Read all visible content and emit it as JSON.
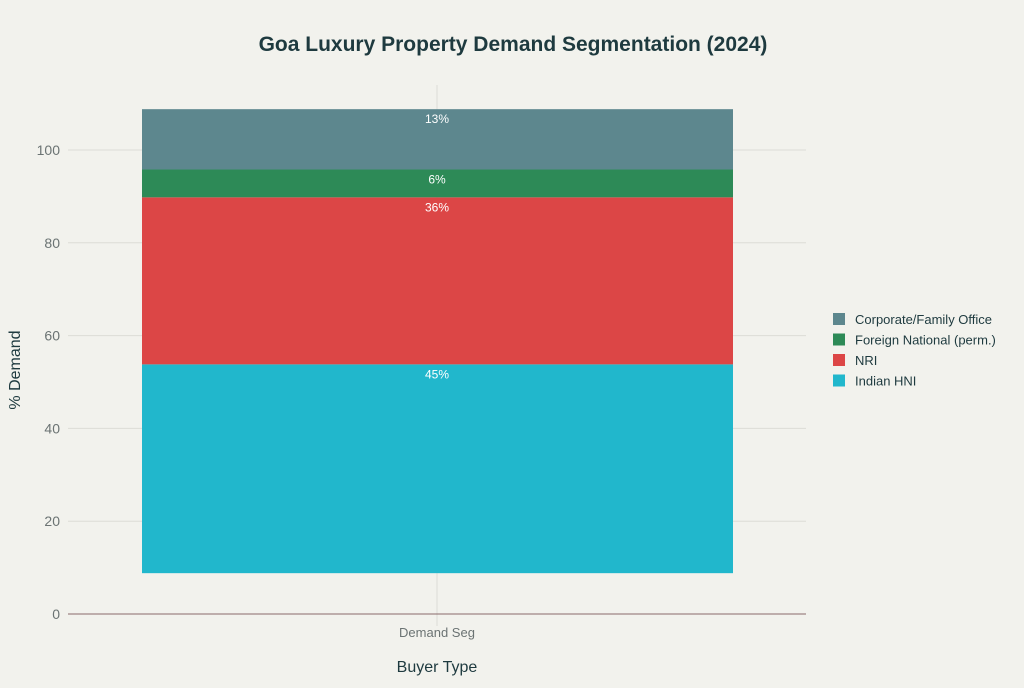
{
  "chart_data": {
    "type": "bar",
    "stacked": true,
    "title": "Goa Luxury Property Demand Segmentation (2024)",
    "xlabel": "Buyer Type",
    "ylabel": "% Demand",
    "categories": [
      "Demand Seg"
    ],
    "base": 8.8,
    "ylim": [
      0,
      114
    ],
    "yticks": [
      0,
      20,
      40,
      60,
      80,
      100
    ],
    "grid": true,
    "legend_position": "right",
    "series": [
      {
        "name": "Indian HNI",
        "values": [
          45
        ],
        "label": "45%",
        "color": "#21b7cc"
      },
      {
        "name": "NRI",
        "values": [
          36
        ],
        "label": "36%",
        "color": "#dc4646"
      },
      {
        "name": "Foreign National (perm.)",
        "values": [
          6
        ],
        "label": "6%",
        "color": "#2d8a57"
      },
      {
        "name": "Corporate/Family Office",
        "values": [
          13
        ],
        "label": "13%",
        "color": "#5d878e"
      }
    ]
  }
}
